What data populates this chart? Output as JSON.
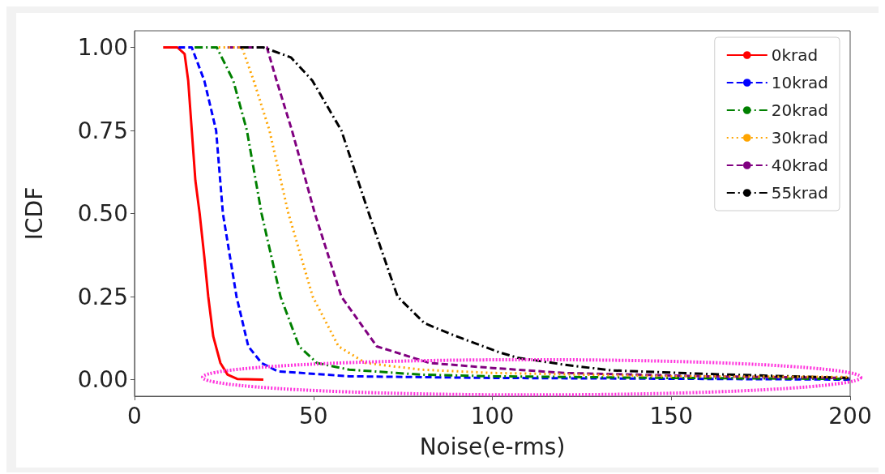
{
  "chart_data": {
    "type": "line",
    "xlabel": "Noise(e-rms)",
    "ylabel": "ICDF",
    "xlim": [
      0,
      200
    ],
    "xticks": [
      0,
      50,
      100,
      150,
      200
    ],
    "ylim": [
      -0.05,
      1.05
    ],
    "yticks": [
      {
        "value": 0,
        "label": "0.00"
      },
      {
        "value": 0.25,
        "label": "0.25"
      },
      {
        "value": 0.5,
        "label": "0.50"
      },
      {
        "value": 0.75,
        "label": "0.75"
      },
      {
        "value": 1,
        "label": "1.00"
      }
    ],
    "grid": false,
    "legend": "top right",
    "marker": "none",
    "series": [
      {
        "name": "0krad",
        "color": "#ff0000",
        "line_style": "solid",
        "x": [
          8,
          12,
          14,
          15,
          16,
          17,
          18.2,
          19.5,
          20.6,
          22,
          24,
          26,
          28.7,
          36
        ],
        "values": [
          1,
          1,
          0.98,
          0.9,
          0.75,
          0.6,
          0.5,
          0.37,
          0.25,
          0.13,
          0.05,
          0.015,
          0.002,
          0
        ]
      },
      {
        "name": "10krad",
        "color": "#0000ff",
        "line_style": "dashed",
        "x": [
          12.3,
          16,
          19.5,
          22.8,
          24.7,
          28.5,
          31.8,
          35.5,
          40,
          60,
          100,
          200
        ],
        "values": [
          1,
          1,
          0.9,
          0.75,
          0.5,
          0.25,
          0.1,
          0.05,
          0.025,
          0.01,
          0.005,
          0
        ]
      },
      {
        "name": "20krad",
        "color": "#008000",
        "line_style": "dashdot",
        "x": [
          16.8,
          23,
          27.6,
          31.4,
          35.5,
          40.8,
          46,
          51,
          60,
          80,
          100,
          150,
          200
        ],
        "values": [
          1,
          1,
          0.9,
          0.75,
          0.5,
          0.25,
          0.1,
          0.05,
          0.03,
          0.015,
          0.01,
          0.005,
          0.002
        ]
      },
      {
        "name": "30krad",
        "color": "#ffa500",
        "line_style": "dotted",
        "x": [
          23.5,
          30,
          33.3,
          37.7,
          43,
          49.8,
          57,
          64.6,
          80,
          100,
          150,
          200
        ],
        "values": [
          1,
          1,
          0.9,
          0.75,
          0.5,
          0.25,
          0.1,
          0.05,
          0.03,
          0.02,
          0.01,
          0.008
        ]
      },
      {
        "name": "40krad",
        "color": "#800080",
        "line_style": "dashed",
        "x": [
          26,
          37,
          39.7,
          44,
          50.4,
          57.8,
          67.7,
          82.5,
          100,
          120,
          160,
          200
        ],
        "values": [
          1,
          1,
          0.9,
          0.75,
          0.5,
          0.25,
          0.1,
          0.05,
          0.035,
          0.02,
          0.01,
          0.005
        ]
      },
      {
        "name": "55krad",
        "color": "#000000",
        "line_style": "dashdot",
        "x": [
          29.6,
          36,
          43.7,
          49.7,
          57.8,
          65.5,
          73.5,
          81,
          88.6,
          95,
          102,
          107,
          120,
          133,
          163,
          200
        ],
        "values": [
          1,
          1,
          0.97,
          0.9,
          0.75,
          0.5,
          0.25,
          0.17,
          0.136,
          0.11,
          0.082,
          0.066,
          0.045,
          0.028,
          0.016,
          0.005
        ]
      }
    ]
  }
}
